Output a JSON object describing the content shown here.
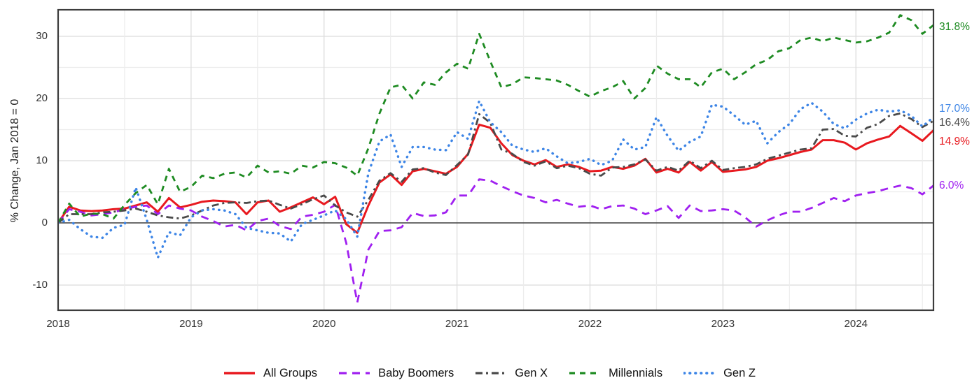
{
  "y_axis": {
    "title": "% Change, Jan 2018 = 0",
    "ticks": [
      30,
      20,
      10,
      0,
      -10
    ]
  },
  "x_axis": {
    "ticks": [
      {
        "label": "2018",
        "month_index": 0
      },
      {
        "label": "2019",
        "month_index": 12
      },
      {
        "label": "2020",
        "month_index": 24
      },
      {
        "label": "2021",
        "month_index": 36
      },
      {
        "label": "2022",
        "month_index": 48
      },
      {
        "label": "2023",
        "month_index": 60
      },
      {
        "label": "2024",
        "month_index": 72
      }
    ]
  },
  "end_labels": [
    {
      "series": "millennials",
      "text": "31.8%"
    },
    {
      "series": "gen_z",
      "text": "17.0%"
    },
    {
      "series": "gen_x",
      "text": "16.4%"
    },
    {
      "series": "all_groups",
      "text": "14.9%"
    },
    {
      "series": "baby_boomers",
      "text": "6.0%"
    }
  ],
  "legend": [
    {
      "series": "all_groups",
      "label": "All Groups"
    },
    {
      "series": "baby_boomers",
      "label": "Baby Boomers"
    },
    {
      "series": "gen_x",
      "label": "Gen X"
    },
    {
      "series": "millennials",
      "label": "Millennials"
    },
    {
      "series": "gen_z",
      "label": "Gen Z"
    }
  ],
  "chart_data": {
    "type": "line",
    "title": "",
    "xlabel": "",
    "ylabel": "% Change, Jan 2018 = 0",
    "x_unit": "month",
    "ylim": [
      -14,
      34.3
    ],
    "grid": true,
    "legend_position": "bottom",
    "x": [
      "2018-01",
      "2018-02",
      "2018-03",
      "2018-04",
      "2018-05",
      "2018-06",
      "2018-07",
      "2018-08",
      "2018-09",
      "2018-10",
      "2018-11",
      "2018-12",
      "2019-01",
      "2019-02",
      "2019-03",
      "2019-04",
      "2019-05",
      "2019-06",
      "2019-07",
      "2019-08",
      "2019-09",
      "2019-10",
      "2019-11",
      "2019-12",
      "2020-01",
      "2020-02",
      "2020-03",
      "2020-04",
      "2020-05",
      "2020-06",
      "2020-07",
      "2020-08",
      "2020-09",
      "2020-10",
      "2020-11",
      "2020-12",
      "2021-01",
      "2021-02",
      "2021-03",
      "2021-04",
      "2021-05",
      "2021-06",
      "2021-07",
      "2021-08",
      "2021-09",
      "2021-10",
      "2021-11",
      "2021-12",
      "2022-01",
      "2022-02",
      "2022-03",
      "2022-04",
      "2022-05",
      "2022-06",
      "2022-07",
      "2022-08",
      "2022-09",
      "2022-10",
      "2022-11",
      "2022-12",
      "2023-01",
      "2023-02",
      "2023-03",
      "2023-04",
      "2023-05",
      "2023-06",
      "2023-07",
      "2023-08",
      "2023-09",
      "2023-10",
      "2023-11",
      "2023-12",
      "2024-01",
      "2024-02",
      "2024-03",
      "2024-04",
      "2024-05",
      "2024-06",
      "2024-07",
      "2024-08"
    ],
    "series": [
      {
        "key": "all_groups",
        "name": "All Groups",
        "color": "#e8191f",
        "line_style": "solid",
        "end_value": 14.9,
        "values": [
          0.0,
          2.6,
          2.0,
          1.9,
          2.0,
          2.2,
          2.3,
          2.8,
          3.3,
          1.8,
          4.0,
          2.5,
          2.9,
          3.4,
          3.6,
          3.5,
          3.3,
          1.4,
          3.3,
          3.6,
          1.8,
          2.5,
          3.3,
          4.1,
          3.0,
          4.2,
          -0.2,
          -1.6,
          2.8,
          6.5,
          7.8,
          6.1,
          8.3,
          8.7,
          8.3,
          7.9,
          9.0,
          11.1,
          15.8,
          15.3,
          12.8,
          10.9,
          10.0,
          9.4,
          10.1,
          9.0,
          9.4,
          9.0,
          8.3,
          8.4,
          9.0,
          8.7,
          9.2,
          10.3,
          8.1,
          8.7,
          8.1,
          9.8,
          8.4,
          9.8,
          8.2,
          8.4,
          8.6,
          9.0,
          10.0,
          10.4,
          10.9,
          11.4,
          11.8,
          13.3,
          13.3,
          12.9,
          11.8,
          12.8,
          13.4,
          13.9,
          15.6,
          14.4,
          13.2,
          14.9
        ]
      },
      {
        "key": "baby_boomers",
        "name": "Baby Boomers",
        "color": "#a020f0",
        "line_style": "dashed",
        "end_value": 6.0,
        "values": [
          0.0,
          2.2,
          1.8,
          1.2,
          1.4,
          1.7,
          2.2,
          2.6,
          2.8,
          1.4,
          2.8,
          2.3,
          2.0,
          1.0,
          0.3,
          -0.6,
          -0.3,
          -1.2,
          0.3,
          0.7,
          -0.5,
          -1.0,
          1.0,
          1.3,
          1.8,
          2.9,
          -3.2,
          -12.8,
          -4.3,
          -1.3,
          -1.2,
          -0.7,
          1.6,
          1.1,
          1.2,
          1.7,
          4.4,
          4.4,
          7.0,
          6.8,
          5.9,
          5.1,
          4.4,
          4.0,
          3.3,
          3.7,
          3.1,
          2.6,
          2.8,
          2.2,
          2.7,
          2.8,
          2.3,
          1.4,
          2.0,
          2.7,
          0.8,
          2.8,
          1.9,
          2.0,
          2.2,
          2.0,
          0.9,
          -0.6,
          0.4,
          1.2,
          1.8,
          1.8,
          2.4,
          3.2,
          4.0,
          3.5,
          4.4,
          4.8,
          5.1,
          5.6,
          6.0,
          5.6,
          4.6,
          6.0
        ]
      },
      {
        "key": "gen_x",
        "name": "Gen X",
        "color": "#4a4a4a",
        "line_style": "dash-dot",
        "end_value": 16.4,
        "values": [
          0.0,
          1.4,
          1.4,
          1.4,
          1.7,
          1.8,
          2.0,
          2.3,
          1.8,
          1.2,
          0.9,
          0.7,
          1.2,
          2.0,
          2.8,
          3.2,
          3.3,
          3.2,
          3.5,
          3.6,
          2.9,
          2.3,
          3.0,
          3.8,
          4.4,
          2.8,
          1.7,
          1.0,
          3.7,
          6.8,
          8.0,
          6.6,
          8.6,
          8.8,
          8.1,
          7.7,
          9.3,
          11.0,
          17.5,
          16.1,
          11.8,
          11.1,
          9.8,
          9.2,
          9.9,
          8.8,
          9.2,
          8.8,
          7.9,
          7.6,
          8.9,
          9.0,
          9.4,
          10.2,
          8.4,
          9.0,
          8.4,
          10.0,
          8.8,
          10.0,
          8.5,
          8.8,
          9.0,
          9.4,
          10.3,
          10.8,
          11.3,
          11.8,
          12.0,
          15.0,
          15.1,
          14.0,
          13.9,
          15.3,
          15.9,
          17.2,
          17.6,
          16.7,
          15.4,
          16.4
        ]
      },
      {
        "key": "millennials",
        "name": "Millennials",
        "color": "#1e8b22",
        "line_style": "dashed",
        "end_value": 31.8,
        "values": [
          0.0,
          3.1,
          1.0,
          1.5,
          1.4,
          0.7,
          2.9,
          4.8,
          6.1,
          3.0,
          8.7,
          5.0,
          5.8,
          7.6,
          7.2,
          7.9,
          8.1,
          7.3,
          9.2,
          8.1,
          8.3,
          7.9,
          9.2,
          8.9,
          9.8,
          9.6,
          8.9,
          7.6,
          12.0,
          17.6,
          21.8,
          22.2,
          20.0,
          22.6,
          22.2,
          24.2,
          25.6,
          24.8,
          30.4,
          26.0,
          21.8,
          22.3,
          23.4,
          23.3,
          23.1,
          22.9,
          22.2,
          21.2,
          20.3,
          21.2,
          21.8,
          22.8,
          20.0,
          21.7,
          25.3,
          24.0,
          23.1,
          23.1,
          21.8,
          24.2,
          24.8,
          23.1,
          24.2,
          25.5,
          26.2,
          27.6,
          28.1,
          29.4,
          29.8,
          29.2,
          29.8,
          29.4,
          29.0,
          29.2,
          29.8,
          30.6,
          33.4,
          32.6,
          30.4,
          31.8
        ]
      },
      {
        "key": "gen_z",
        "name": "Gen Z",
        "color": "#3d85e6",
        "line_style": "dotted",
        "end_value": 17.0,
        "values": [
          0.0,
          0.5,
          -1.0,
          -2.2,
          -2.4,
          -0.8,
          -0.3,
          5.7,
          0.5,
          -5.6,
          -1.5,
          -2.0,
          0.9,
          2.0,
          2.2,
          2.0,
          1.4,
          -0.8,
          -1.2,
          -1.6,
          -1.7,
          -3.0,
          -0.2,
          0.5,
          1.2,
          2.0,
          0.6,
          -2.2,
          8.0,
          13.1,
          14.2,
          9.0,
          12.2,
          12.2,
          11.8,
          11.7,
          14.6,
          13.5,
          19.6,
          16.2,
          14.6,
          12.4,
          11.8,
          11.4,
          12.0,
          10.7,
          9.6,
          9.8,
          10.3,
          9.3,
          10.0,
          13.4,
          11.8,
          12.2,
          17.0,
          14.0,
          11.6,
          13.0,
          13.9,
          19.0,
          18.7,
          17.3,
          15.8,
          16.4,
          12.8,
          14.6,
          15.9,
          18.3,
          19.3,
          17.9,
          15.9,
          15.2,
          16.6,
          17.6,
          18.2,
          17.9,
          18.1,
          17.2,
          15.5,
          17.0
        ]
      }
    ]
  }
}
